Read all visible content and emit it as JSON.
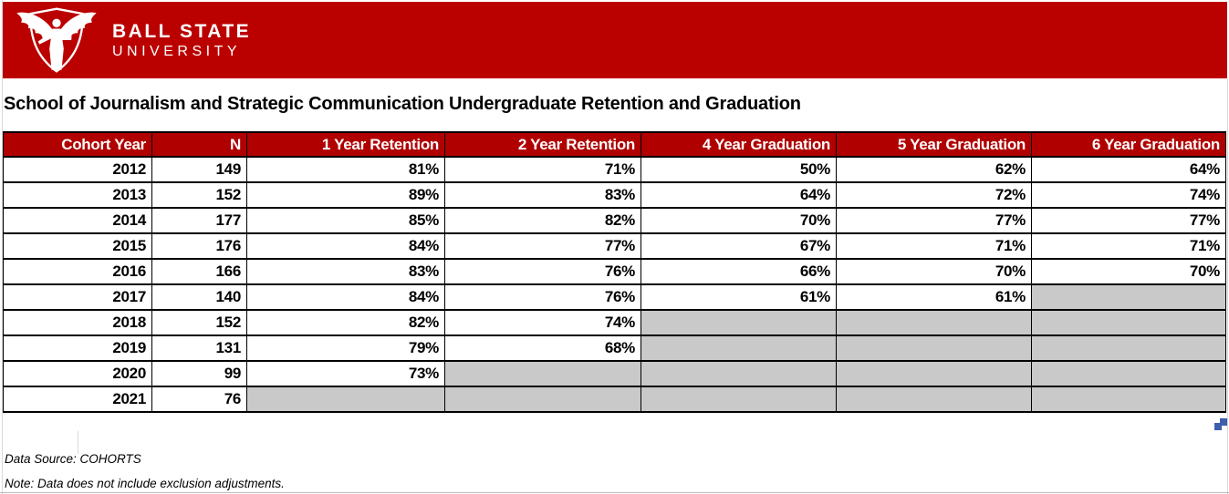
{
  "brand": {
    "line1": "BALL STATE",
    "line2": "UNIVERSITY",
    "logo_icon": "beneficence-statue-shield"
  },
  "page_title": "School of Journalism and Strategic Communication Undergraduate Retention and Graduation",
  "table": {
    "headers": [
      "Cohort Year",
      "N",
      "1 Year Retention",
      "2 Year Retention",
      "4 Year Graduation",
      "5 Year Graduation",
      "6 Year Graduation"
    ],
    "rows": [
      {
        "cells": [
          "2012",
          "149",
          "81%",
          "71%",
          "50%",
          "62%",
          "64%"
        ]
      },
      {
        "cells": [
          "2013",
          "152",
          "89%",
          "83%",
          "64%",
          "72%",
          "74%"
        ]
      },
      {
        "cells": [
          "2014",
          "177",
          "85%",
          "82%",
          "70%",
          "77%",
          "77%"
        ]
      },
      {
        "cells": [
          "2015",
          "176",
          "84%",
          "77%",
          "67%",
          "71%",
          "71%"
        ]
      },
      {
        "cells": [
          "2016",
          "166",
          "83%",
          "76%",
          "66%",
          "70%",
          "70%"
        ]
      },
      {
        "cells": [
          "2017",
          "140",
          "84%",
          "76%",
          "61%",
          "61%",
          null
        ]
      },
      {
        "cells": [
          "2018",
          "152",
          "82%",
          "74%",
          null,
          null,
          null
        ]
      },
      {
        "cells": [
          "2019",
          "131",
          "79%",
          "68%",
          null,
          null,
          null
        ]
      },
      {
        "cells": [
          "2020",
          "99",
          "73%",
          null,
          null,
          null,
          null
        ]
      },
      {
        "cells": [
          "2021",
          "76",
          null,
          null,
          null,
          null,
          null
        ]
      }
    ]
  },
  "footer": {
    "source": "Data Source: COHORTS",
    "note": "Note: Data does not include exclusion adjustments."
  },
  "colors": {
    "banner_red": "#BB0000",
    "header_red": "#B00000",
    "missing_gray": "#C9C9C9",
    "handle_blue": "#3F5EAE"
  }
}
